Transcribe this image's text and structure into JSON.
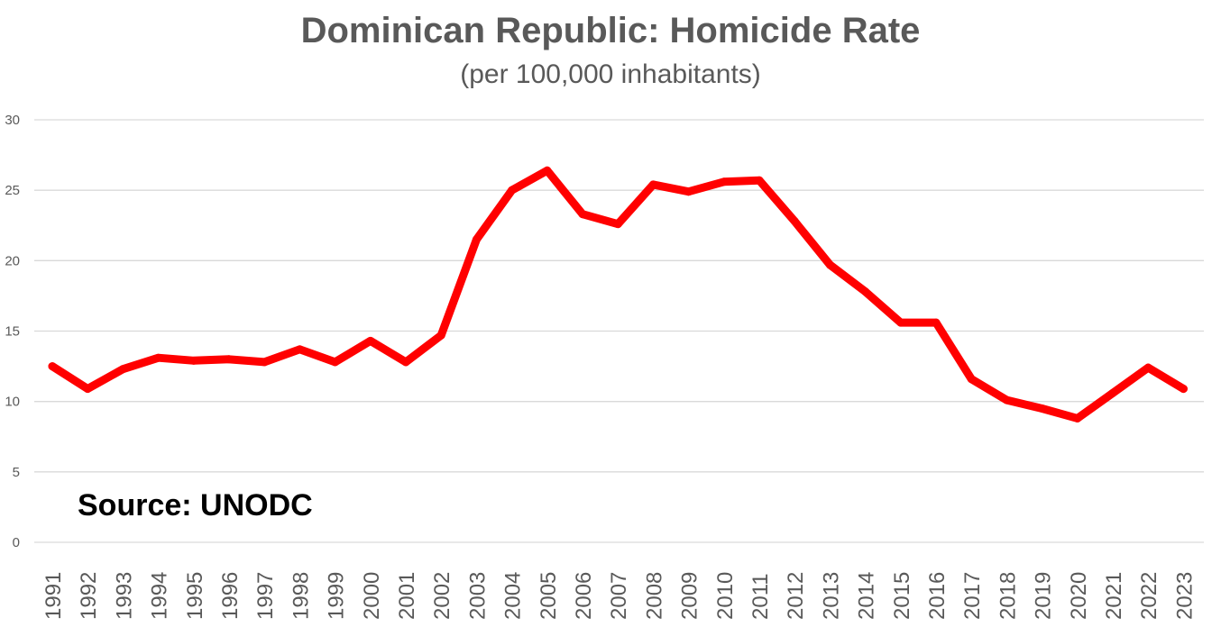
{
  "chart_data": {
    "type": "line",
    "title": "Dominican Republic: Homicide Rate",
    "subtitle": "(per 100,000 inhabitants)",
    "source": "Source: UNODC",
    "xlabel": "",
    "ylabel": "",
    "ylim": [
      0,
      30
    ],
    "yticks": [
      "0",
      "5",
      "10",
      "15",
      "20",
      "25",
      "30"
    ],
    "grid": true,
    "legend": "none",
    "x": [
      "1991",
      "1992",
      "1993",
      "1994",
      "1995",
      "1996",
      "1997",
      "1998",
      "1999",
      "2000",
      "2001",
      "2002",
      "2003",
      "2004",
      "2005",
      "2006",
      "2007",
      "2008",
      "2009",
      "2010",
      "2011",
      "2012",
      "2013",
      "2014",
      "2015",
      "2016",
      "2017",
      "2018",
      "2019",
      "2020",
      "2021",
      "2022",
      "2023"
    ],
    "series": [
      {
        "name": "Homicide rate",
        "color": "#ff0000",
        "values": [
          12.5,
          10.9,
          12.3,
          13.1,
          12.9,
          13.0,
          12.8,
          13.7,
          12.8,
          14.3,
          12.8,
          14.7,
          21.5,
          25.0,
          26.4,
          23.3,
          22.6,
          25.4,
          24.9,
          25.6,
          25.7,
          22.8,
          19.7,
          17.8,
          15.6,
          15.6,
          11.6,
          10.1,
          9.5,
          8.8,
          10.6,
          12.4,
          10.9
        ]
      }
    ]
  }
}
